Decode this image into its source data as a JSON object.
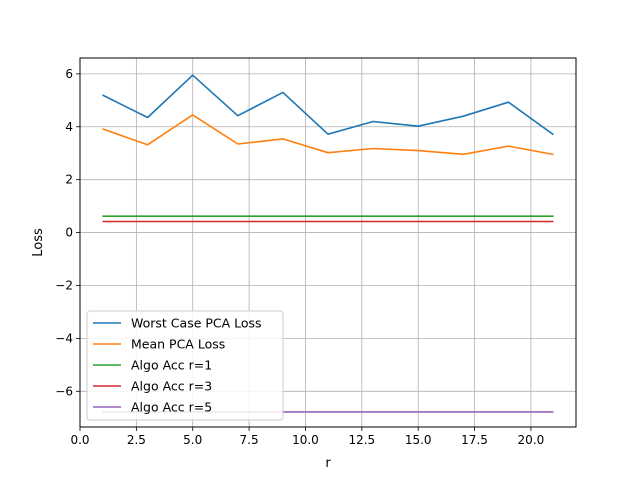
{
  "chart_data": {
    "type": "line",
    "title": "",
    "xlabel": "r",
    "ylabel": "Loss",
    "xlim": [
      0.0,
      22.0
    ],
    "ylim": [
      -7.35,
      6.6
    ],
    "x_ticks": [
      0.0,
      2.5,
      5.0,
      7.5,
      10.0,
      12.5,
      15.0,
      17.5,
      20.0
    ],
    "x_tick_labels": [
      "0.0",
      "2.5",
      "5.0",
      "7.5",
      "10.0",
      "12.5",
      "15.0",
      "17.5",
      "20.0"
    ],
    "y_ticks": [
      -6,
      -4,
      -2,
      0,
      2,
      4,
      6
    ],
    "y_tick_labels": [
      "−6",
      "−4",
      "−2",
      "0",
      "2",
      "4",
      "6"
    ],
    "grid": true,
    "legend_position": "lower-left",
    "x": [
      1,
      3,
      5,
      7,
      9,
      11,
      13,
      15,
      17,
      19,
      21
    ],
    "series": [
      {
        "name": "Worst Case PCA Loss",
        "color": "#1f77b4",
        "values": [
          5.2,
          4.35,
          5.95,
          4.42,
          5.3,
          3.72,
          4.2,
          4.02,
          4.4,
          4.93,
          3.7
        ]
      },
      {
        "name": "Mean PCA Loss",
        "color": "#ff7f0e",
        "values": [
          3.92,
          3.32,
          4.45,
          3.35,
          3.54,
          3.02,
          3.18,
          3.1,
          2.96,
          3.27,
          2.95
        ]
      },
      {
        "name": "Algo Acc r=1",
        "color": "#2ca02c",
        "values": [
          0.62,
          0.62,
          0.62,
          0.62,
          0.62,
          0.62,
          0.62,
          0.62,
          0.62,
          0.62,
          0.62
        ]
      },
      {
        "name": "Algo Acc r=3",
        "color": "#d62728",
        "values": [
          0.42,
          0.42,
          0.42,
          0.42,
          0.42,
          0.42,
          0.42,
          0.42,
          0.42,
          0.42,
          0.42
        ]
      },
      {
        "name": "Algo Acc r=5",
        "color": "#9467bd",
        "values": [
          -6.78,
          -6.78,
          -6.78,
          -6.78,
          -6.78,
          -6.78,
          -6.78,
          -6.78,
          -6.78,
          -6.78,
          -6.78
        ]
      }
    ]
  }
}
